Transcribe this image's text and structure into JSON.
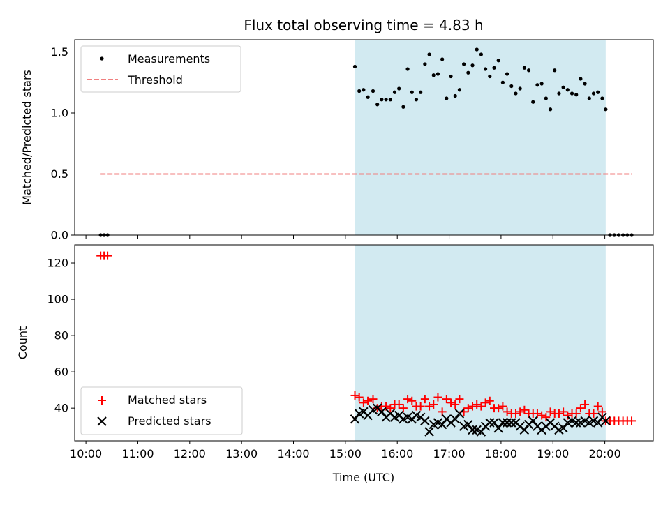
{
  "chart_data": {
    "title": "Flux total observing time = 4.83 h",
    "xlabel": "Time (UTC)",
    "x_ticks": [
      "10:00",
      "11:00",
      "12:00",
      "13:00",
      "14:00",
      "15:00",
      "16:00",
      "17:00",
      "18:00",
      "19:00",
      "20:00"
    ],
    "x_range": [
      "09:47",
      "20:56"
    ],
    "shaded_span": {
      "start": "15:11",
      "end": "20:01",
      "color": "#add8e6"
    },
    "panels": [
      {
        "type": "scatter",
        "ylabel": "Matched/Predicted stars",
        "ylim": [
          0,
          1.6
        ],
        "y_ticks": [
          0.0,
          0.5,
          1.0,
          1.5
        ],
        "y_tick_labels": [
          "0.0",
          "0.5",
          "1.0",
          "1.5"
        ],
        "legend_position": "top-left",
        "series": [
          {
            "name": "Measurements",
            "marker": "dot",
            "color": "#000000",
            "x": [
              "10:17",
              "10:21",
              "10:25",
              "15:11",
              "15:16",
              "15:21",
              "15:26",
              "15:32",
              "15:37",
              "15:42",
              "15:47",
              "15:52",
              "15:57",
              "16:02",
              "16:07",
              "16:12",
              "16:17",
              "16:22",
              "16:27",
              "16:32",
              "16:37",
              "16:42",
              "16:47",
              "16:52",
              "16:57",
              "17:02",
              "17:07",
              "17:12",
              "17:17",
              "17:22",
              "17:27",
              "17:32",
              "17:37",
              "17:42",
              "17:47",
              "17:52",
              "17:57",
              "18:02",
              "18:07",
              "18:12",
              "18:17",
              "18:22",
              "18:27",
              "18:32",
              "18:37",
              "18:42",
              "18:47",
              "18:52",
              "18:57",
              "19:02",
              "19:07",
              "19:12",
              "19:17",
              "19:22",
              "19:27",
              "19:32",
              "19:37",
              "19:42",
              "19:47",
              "19:52",
              "19:57",
              "20:01",
              "20:06",
              "20:11",
              "20:16",
              "20:21",
              "20:26",
              "20:31"
            ],
            "y": [
              0,
              0,
              0,
              1.38,
              1.18,
              1.19,
              1.13,
              1.18,
              1.07,
              1.11,
              1.11,
              1.11,
              1.17,
              1.2,
              1.05,
              1.36,
              1.17,
              1.11,
              1.17,
              1.4,
              1.48,
              1.31,
              1.32,
              1.44,
              1.12,
              1.3,
              1.14,
              1.19,
              1.4,
              1.33,
              1.39,
              1.52,
              1.48,
              1.36,
              1.3,
              1.37,
              1.43,
              1.25,
              1.32,
              1.22,
              1.16,
              1.2,
              1.37,
              1.35,
              1.09,
              1.23,
              1.24,
              1.12,
              1.03,
              1.35,
              1.16,
              1.21,
              1.19,
              1.16,
              1.15,
              1.28,
              1.24,
              1.12,
              1.16,
              1.17,
              1.12,
              1.03,
              0,
              0,
              0,
              0,
              0,
              0
            ]
          },
          {
            "name": "Threshold",
            "marker": "dashed-line",
            "color": "#f08080",
            "x": [
              "10:17",
              "20:31"
            ],
            "y": [
              0.5,
              0.5
            ]
          }
        ]
      },
      {
        "type": "scatter",
        "ylabel": "Count",
        "ylim": [
          22,
          130
        ],
        "y_ticks": [
          40,
          60,
          80,
          100,
          120
        ],
        "y_tick_labels": [
          "40",
          "60",
          "80",
          "100",
          "120"
        ],
        "legend_position": "bottom-left",
        "series": [
          {
            "name": "Matched stars",
            "marker": "plus",
            "color": "#ff0000",
            "x": [
              "10:17",
              "10:21",
              "10:25",
              "15:11",
              "15:16",
              "15:21",
              "15:26",
              "15:32",
              "15:37",
              "15:42",
              "15:47",
              "15:52",
              "15:57",
              "16:02",
              "16:07",
              "16:12",
              "16:17",
              "16:22",
              "16:27",
              "16:32",
              "16:37",
              "16:42",
              "16:47",
              "16:52",
              "16:57",
              "17:02",
              "17:07",
              "17:12",
              "17:17",
              "17:22",
              "17:27",
              "17:32",
              "17:37",
              "17:42",
              "17:47",
              "17:52",
              "17:57",
              "18:02",
              "18:07",
              "18:12",
              "18:17",
              "18:22",
              "18:27",
              "18:32",
              "18:37",
              "18:42",
              "18:47",
              "18:52",
              "18:57",
              "19:02",
              "19:07",
              "19:12",
              "19:17",
              "19:22",
              "19:27",
              "19:32",
              "19:37",
              "19:42",
              "19:47",
              "19:52",
              "19:57",
              "20:01",
              "20:06",
              "20:11",
              "20:16",
              "20:21",
              "20:26",
              "20:31"
            ],
            "y": [
              124,
              124,
              124,
              47,
              46,
              43,
              44,
              45,
              40,
              41,
              41,
              40,
              42,
              42,
              40,
              45,
              44,
              41,
              41,
              45,
              41,
              42,
              46,
              38,
              45,
              43,
              42,
              45,
              38,
              40,
              41,
              42,
              41,
              43,
              44,
              40,
              40,
              41,
              38,
              37,
              37,
              38,
              39,
              37,
              37,
              37,
              36,
              35,
              38,
              37,
              37,
              38,
              36,
              37,
              37,
              40,
              42,
              37,
              37,
              41,
              38,
              33,
              33,
              33,
              33,
              33,
              33,
              33
            ]
          },
          {
            "name": "Predicted stars",
            "marker": "x",
            "color": "#000000",
            "x": [
              "15:11",
              "15:16",
              "15:21",
              "15:26",
              "15:32",
              "15:37",
              "15:42",
              "15:47",
              "15:52",
              "15:57",
              "16:02",
              "16:07",
              "16:12",
              "16:17",
              "16:22",
              "16:27",
              "16:32",
              "16:37",
              "16:42",
              "16:47",
              "16:52",
              "16:57",
              "17:02",
              "17:07",
              "17:12",
              "17:17",
              "17:22",
              "17:27",
              "17:32",
              "17:37",
              "17:42",
              "17:47",
              "17:52",
              "17:57",
              "18:02",
              "18:07",
              "18:12",
              "18:17",
              "18:22",
              "18:27",
              "18:32",
              "18:37",
              "18:42",
              "18:47",
              "18:52",
              "18:57",
              "19:02",
              "19:07",
              "19:12",
              "19:17",
              "19:22",
              "19:27",
              "19:32",
              "19:37",
              "19:42",
              "19:47",
              "19:52",
              "19:57",
              "20:01"
            ],
            "y": [
              34,
              37,
              38,
              36,
              39,
              40,
              38,
              35,
              37,
              35,
              36,
              34,
              35,
              34,
              36,
              35,
              33,
              27,
              31,
              32,
              31,
              34,
              32,
              34,
              37,
              30,
              31,
              28,
              28,
              27,
              30,
              32,
              32,
              29,
              32,
              32,
              32,
              32,
              30,
              28,
              31,
              33,
              30,
              28,
              30,
              32,
              30,
              28,
              29,
              32,
              33,
              32,
              32,
              33,
              32,
              33,
              32,
              35,
              33
            ]
          }
        ]
      }
    ]
  }
}
